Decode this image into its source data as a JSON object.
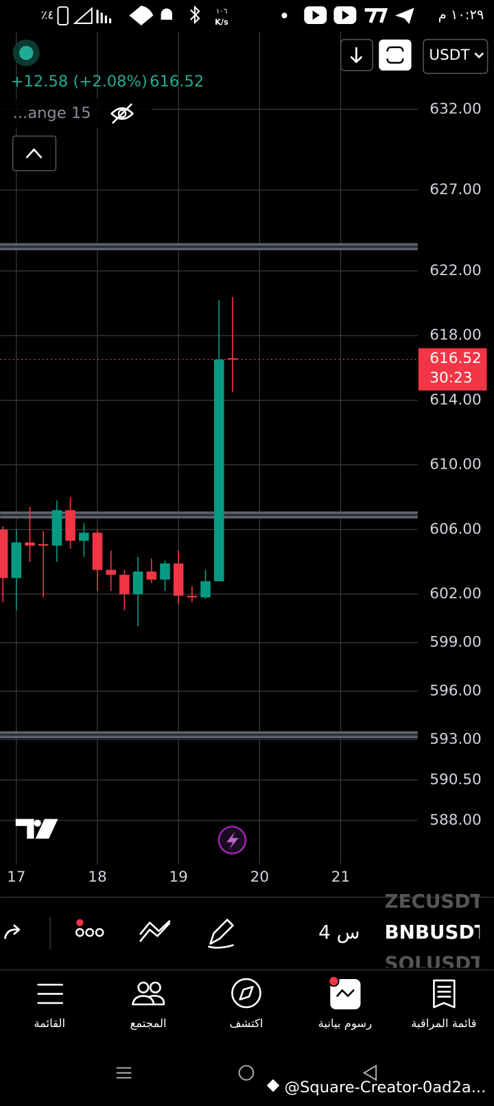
{
  "status_bar": {
    "battery": "٪٤",
    "speed": "١٠٦",
    "speed_unit": "K/s",
    "time": "١٠:٢٩ م"
  },
  "header": {
    "change": "+12.58 (+2.08%)",
    "price": "616.52",
    "indicator": "...ange 15",
    "currency": "USDT"
  },
  "chart_data": {
    "type": "candlestick",
    "x": [
      16.8333,
      17,
      17.1667,
      17.3333,
      17.5,
      17.6667,
      17.8333,
      18,
      18.1667,
      18.3333,
      18.5,
      18.6667,
      18.8333,
      19,
      19.1667,
      19.3333,
      19.5,
      19.6667
    ],
    "open": [
      606.0,
      603.0,
      605.2,
      605.1,
      605.0,
      607.2,
      605.3,
      605.8,
      603.5,
      603.2,
      602.0,
      603.4,
      602.9,
      603.9,
      601.9,
      601.8,
      602.8,
      616.6
    ],
    "high": [
      606.2,
      606.0,
      607.4,
      605.9,
      607.8,
      608.0,
      606.4,
      606.0,
      604.7,
      603.5,
      604.3,
      604.2,
      604.1,
      604.7,
      602.5,
      603.5,
      620.2,
      620.4
    ],
    "low": [
      601.5,
      601.0,
      604.0,
      601.8,
      604.0,
      604.8,
      604.3,
      602.2,
      602.2,
      601.0,
      600.0,
      602.7,
      602.2,
      601.4,
      601.5,
      601.7,
      602.8,
      614.5
    ],
    "close": [
      603.0,
      605.2,
      605.0,
      605.0,
      607.2,
      605.3,
      605.8,
      603.5,
      603.2,
      602.0,
      603.4,
      602.9,
      603.9,
      601.9,
      601.8,
      602.8,
      616.52,
      616.52
    ],
    "up_color": "#089981",
    "down_color": "#f23645",
    "xlim": [
      16.8,
      21.95
    ],
    "xticks": [
      17,
      18,
      19,
      20,
      21
    ],
    "ylim": [
      585.3,
      636.8
    ],
    "yticks": [
      {
        "value": 632,
        "label": "632.00"
      },
      {
        "value": 627,
        "label": "627.00"
      },
      {
        "value": 622,
        "label": "622.00"
      },
      {
        "value": 618,
        "label": "618.00"
      },
      {
        "value": 614,
        "label": "614.00"
      },
      {
        "value": 610,
        "label": "610.00"
      },
      {
        "value": 606,
        "label": "606.00"
      },
      {
        "value": 602,
        "label": "602.00"
      },
      {
        "value": 599,
        "label": "599.00"
      },
      {
        "value": 596,
        "label": "596.00"
      },
      {
        "value": 593,
        "label": "593.00"
      },
      {
        "value": 590.5,
        "label": "590.50"
      },
      {
        "value": 588,
        "label": "588.00"
      }
    ],
    "grid": true,
    "horizontal_lines": [
      623.5,
      606.9,
      593.3
    ],
    "last_price": 616.52,
    "countdown": "30:23"
  },
  "toolbar": {
    "interval": "4 س",
    "symbols": [
      "ZECUSDT",
      "BNBUSDT",
      "SOLUSDT"
    ]
  },
  "nav": [
    "القائمة",
    "المجتمع",
    "اكتشف",
    "رسوم بيانية",
    "قائمة المراقبة"
  ],
  "watermark": "@Square-Creator-0ad2a..."
}
